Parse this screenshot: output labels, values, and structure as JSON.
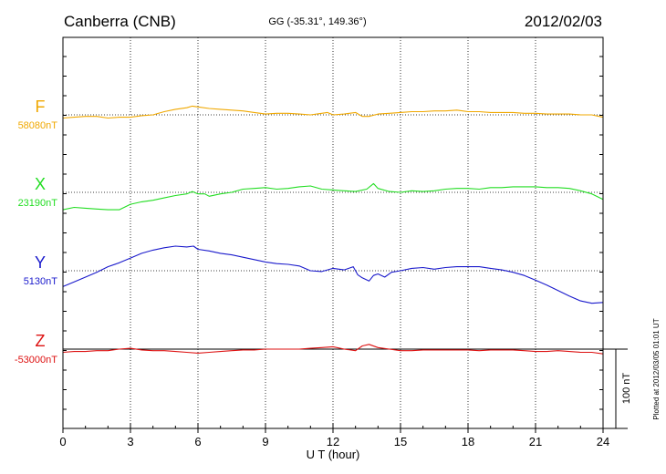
{
  "header": {
    "station": "Canberra (CNB)",
    "coords": "GG (-35.31°, 149.36°)",
    "date": "2012/02/03"
  },
  "footer_note": "Plotted at 2012/03/05 01:01 UT",
  "chart_data": {
    "type": "line",
    "xlabel": "U T (hour)",
    "xlim": [
      0,
      24
    ],
    "xticks": [
      "0",
      "3",
      "6",
      "9",
      "12",
      "15",
      "18",
      "21",
      "24"
    ],
    "grid": true,
    "scale_bar": "100 nT",
    "scale_nT": 100,
    "series": [
      {
        "name": "F",
        "baseline_label": "58080nT",
        "baseline": 58080,
        "color": "#f0a800",
        "x": [
          0,
          0.5,
          1,
          1.5,
          2,
          2.5,
          3,
          3.5,
          4,
          4.5,
          5,
          5.5,
          5.75,
          6,
          6.5,
          7,
          7.5,
          8,
          8.5,
          9,
          9.5,
          10,
          10.5,
          11,
          11.5,
          11.75,
          12,
          12.5,
          13,
          13.3,
          13.6,
          14,
          14.5,
          15,
          15.5,
          16,
          16.5,
          17,
          17.5,
          18,
          18.5,
          19,
          19.5,
          20,
          20.5,
          21,
          21.5,
          22,
          22.5,
          23,
          23.5,
          24
        ],
        "y": [
          58076,
          58077,
          58078,
          58078,
          58076,
          58077,
          58077,
          58079,
          58080,
          58084,
          58087,
          58089,
          58091,
          58090,
          58088,
          58087,
          58086,
          58085,
          58083,
          58081,
          58082,
          58082,
          58081,
          58080,
          58082,
          58083,
          58080,
          58081,
          58083,
          58078,
          58078,
          58081,
          58082,
          58083,
          58084,
          58084,
          58085,
          58085,
          58086,
          58084,
          58084,
          58083,
          58083,
          58083,
          58082,
          58082,
          58081,
          58081,
          58081,
          58080,
          58080,
          58077
        ]
      },
      {
        "name": "X",
        "baseline_label": "23190nT",
        "baseline": 23190,
        "color": "#22dd22",
        "x": [
          0,
          0.5,
          1,
          1.5,
          2,
          2.5,
          3,
          3.5,
          4,
          4.5,
          5,
          5.5,
          5.75,
          6,
          6.3,
          6.5,
          7,
          7.5,
          8,
          8.5,
          9,
          9.5,
          10,
          10.5,
          11,
          11.5,
          12,
          12.5,
          13,
          13.5,
          13.8,
          14,
          14.5,
          15,
          15.5,
          16,
          16.5,
          17,
          17.5,
          18,
          18.5,
          19,
          19.5,
          20,
          20.5,
          21,
          21.5,
          22,
          22.5,
          23,
          23.5,
          24
        ],
        "y": [
          23168,
          23171,
          23170,
          23169,
          23168,
          23168,
          23175,
          23178,
          23180,
          23183,
          23186,
          23188,
          23191,
          23188,
          23188,
          23185,
          23188,
          23190,
          23194,
          23195,
          23196,
          23194,
          23195,
          23197,
          23198,
          23194,
          23193,
          23192,
          23191,
          23194,
          23201,
          23195,
          23191,
          23190,
          23192,
          23191,
          23192,
          23194,
          23195,
          23195,
          23194,
          23196,
          23196,
          23197,
          23197,
          23197,
          23196,
          23196,
          23195,
          23192,
          23188,
          23181
        ]
      },
      {
        "name": "Y",
        "baseline_label": "5130nT",
        "baseline": 5130,
        "color": "#1a1acc",
        "x": [
          0,
          0.5,
          1,
          1.5,
          2,
          2.5,
          3,
          3.5,
          4,
          4.5,
          5,
          5.5,
          5.8,
          6,
          6.5,
          7,
          7.5,
          8,
          8.5,
          9,
          9.5,
          10,
          10.5,
          11,
          11.5,
          12,
          12.5,
          12.9,
          13.1,
          13.3,
          13.6,
          13.8,
          14,
          14.3,
          14.6,
          15,
          15.5,
          16,
          16.5,
          17,
          17.5,
          18,
          18.5,
          19,
          19.5,
          20,
          20.5,
          21,
          21.5,
          22,
          22.5,
          23,
          23.5,
          24
        ],
        "y": [
          5110,
          5116,
          5122,
          5128,
          5135,
          5140,
          5146,
          5152,
          5156,
          5159,
          5161,
          5160,
          5161,
          5157,
          5155,
          5152,
          5150,
          5147,
          5144,
          5141,
          5139,
          5138,
          5136,
          5130,
          5129,
          5133,
          5131,
          5135,
          5125,
          5121,
          5117,
          5124,
          5126,
          5122,
          5128,
          5130,
          5133,
          5134,
          5132,
          5134,
          5135,
          5135,
          5135,
          5133,
          5131,
          5128,
          5124,
          5118,
          5112,
          5105,
          5098,
          5092,
          5089,
          5090
        ]
      },
      {
        "name": "Z",
        "baseline_label": "-53000nT",
        "baseline": -53000,
        "color": "#dd1111",
        "x": [
          0,
          0.5,
          1,
          1.5,
          2,
          2.5,
          3,
          3.5,
          4,
          4.5,
          5,
          5.5,
          6,
          6.5,
          7,
          7.5,
          8,
          8.5,
          9,
          9.5,
          10,
          10.5,
          11,
          11.5,
          12,
          12.5,
          13,
          13.3,
          13.6,
          14,
          14.5,
          15,
          15.5,
          16,
          16.5,
          17,
          17.5,
          18,
          18.5,
          19,
          19.5,
          20,
          20.5,
          21,
          21.5,
          22,
          22.5,
          23,
          23.5,
          24
        ],
        "y": [
          -53004,
          -53003,
          -53003,
          -53002,
          -53002,
          -53000,
          -52999,
          -53001,
          -53002,
          -53002,
          -53003,
          -53004,
          -53005,
          -53004,
          -53003,
          -53002,
          -53001,
          -53001,
          -53000,
          -53000,
          -53000,
          -53000,
          -52999,
          -52998,
          -52997,
          -53000,
          -53002,
          -52996,
          -52994,
          -52998,
          -53000,
          -53002,
          -53002,
          -53001,
          -53001,
          -53001,
          -53001,
          -53001,
          -53002,
          -53001,
          -53001,
          -53001,
          -53002,
          -53003,
          -53003,
          -53002,
          -53003,
          -53004,
          -53004,
          -53006
        ]
      }
    ]
  }
}
